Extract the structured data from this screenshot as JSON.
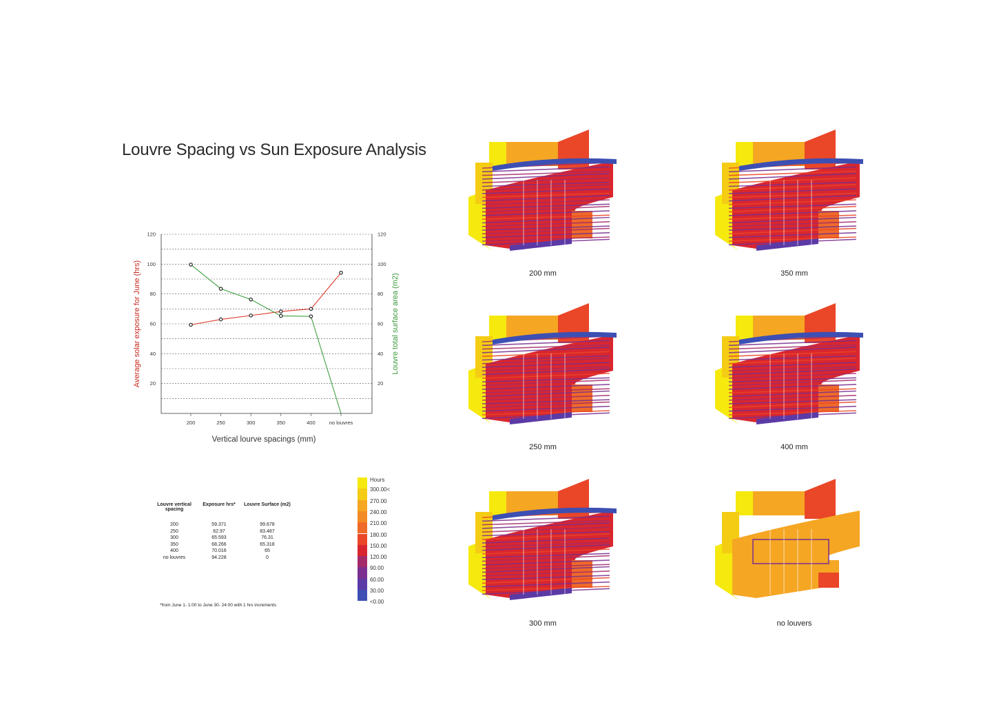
{
  "title": "Louvre Spacing vs Sun Exposure Analysis",
  "colors": {
    "red_series": "#e03a2b",
    "green_series": "#3f9f3f",
    "left_axis_label": "#c8281e",
    "right_axis_label": "#3a9a3a"
  },
  "chart_data": {
    "type": "line",
    "categories": [
      "200",
      "250",
      "300",
      "350",
      "400",
      "no louvres"
    ],
    "xlabel": "Vertical lourve spacings (mm)",
    "ylabel_left": "Average solar exposure for June (hrs)",
    "ylabel_right": "Louvre total surface area (m2)",
    "ylim": [
      0,
      120
    ],
    "yticks": [
      "20",
      "40",
      "60",
      "80",
      "100",
      "120"
    ],
    "grid": true,
    "series": [
      {
        "axis": "left",
        "color": "#e03a2b",
        "values": [
          59.371,
          62.97,
          65.593,
          68.266,
          70.016,
          94.228
        ]
      },
      {
        "axis": "right",
        "color": "#3f9f3f",
        "values": [
          99.678,
          83.487,
          76.31,
          65.318,
          65,
          0
        ]
      }
    ]
  },
  "table": {
    "headers": [
      "Louvre vertical spacing",
      "Exposure hrs*",
      "Louvre Surface (m2)"
    ],
    "rows": [
      [
        "200",
        "59.371",
        "99.678"
      ],
      [
        "250",
        "62.97",
        "83.487"
      ],
      [
        "300",
        "65.593",
        "76.31"
      ],
      [
        "350",
        "68.266",
        "65.318"
      ],
      [
        "400",
        "70.016",
        "65"
      ],
      [
        "no louvres",
        "94.228",
        "0"
      ]
    ],
    "footnote": "*from June 1- 1:00 to June 30- 24:00 with 1 hrs increments"
  },
  "legend": {
    "title": "Hours",
    "items": [
      {
        "label": "300.00<",
        "color": "#f5e90e"
      },
      {
        "label": "270.00",
        "color": "#f5cc14"
      },
      {
        "label": "240.00",
        "color": "#f5a623"
      },
      {
        "label": "210.00",
        "color": "#f28a26"
      },
      {
        "label": "180.00",
        "color": "#ef6a28"
      },
      {
        "label": "150.00",
        "color": "#ea4628"
      },
      {
        "label": "120.00",
        "color": "#d9262e"
      },
      {
        "label": "90.00",
        "color": "#a52a6a"
      },
      {
        "label": "60.00",
        "color": "#7a2f8f"
      },
      {
        "label": "30.00",
        "color": "#5b3aa6"
      },
      {
        "label": "<0.00",
        "color": "#3d4fb3"
      }
    ]
  },
  "views": [
    {
      "caption": "200 mm",
      "hot": 0.15
    },
    {
      "caption": "350 mm",
      "hot": 0.55
    },
    {
      "caption": "250 mm",
      "hot": 0.3
    },
    {
      "caption": "400 mm",
      "hot": 0.6
    },
    {
      "caption": "300 mm",
      "hot": 0.4
    },
    {
      "caption": "no louvers",
      "hot": 1.0
    }
  ]
}
